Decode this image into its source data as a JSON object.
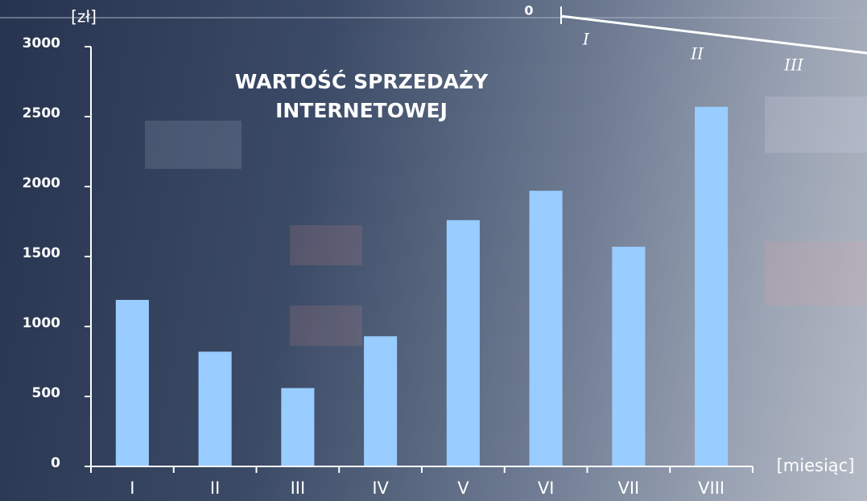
{
  "chart_data": {
    "type": "bar",
    "title": "WARTOŚĆ SPRZEDAŻY INTERNETOWEJ",
    "y_label": "[zł]",
    "x_label": "[miesiąc]",
    "categories": [
      "I",
      "II",
      "III",
      "IV",
      "V",
      "VI",
      "VII",
      "VIII"
    ],
    "values": [
      1190,
      820,
      560,
      930,
      1760,
      1970,
      1570,
      2570
    ],
    "color": "#99ccff",
    "ylim": [
      0,
      3000
    ],
    "yticks": [
      0,
      500,
      1000,
      1500,
      2000,
      2500,
      3000
    ],
    "grid": false
  },
  "ornament": {
    "zero": "0",
    "labels": [
      "I",
      "II",
      "III"
    ]
  }
}
